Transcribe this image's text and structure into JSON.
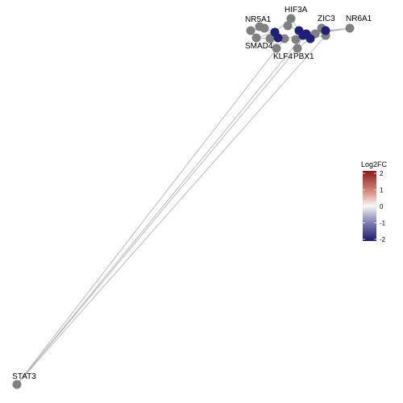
{
  "colors": {
    "edge": "#b3b3b3",
    "node_neutral": "#808080",
    "node_down": "#1f1f7a",
    "gradient_high": "#8b1a1a",
    "gradient_mid": "#f7f7f7",
    "gradient_low": "#1a1a6e"
  },
  "legend": {
    "title": "Log2FC",
    "ticks": [
      "2",
      "1",
      "0",
      "-1",
      "-2"
    ],
    "min": -2,
    "max": 2
  },
  "nodes": [
    {
      "id": "NR5A1",
      "label": "NR5A1",
      "log2fc": null
    },
    {
      "id": "HIF3A",
      "label": "HIF3A",
      "log2fc": null
    },
    {
      "id": "ZIC3",
      "label": "ZIC3",
      "log2fc": null
    },
    {
      "id": "NR6A1",
      "label": "NR6A1",
      "log2fc": null
    },
    {
      "id": "SMAD4",
      "label": "SMAD4",
      "log2fc": null
    },
    {
      "id": "KLF4",
      "label": "KLF4",
      "log2fc": null
    },
    {
      "id": "PBX1",
      "label": "PBX1",
      "log2fc": null
    },
    {
      "id": "STAT3",
      "label": "STAT3",
      "log2fc": null
    },
    {
      "id": "u1",
      "label": "",
      "log2fc": null
    },
    {
      "id": "u2",
      "label": "",
      "log2fc": null
    },
    {
      "id": "u3",
      "label": "",
      "log2fc": null
    },
    {
      "id": "u4",
      "label": "",
      "log2fc": null
    },
    {
      "id": "u5",
      "label": "",
      "log2fc": null
    },
    {
      "id": "u6",
      "label": "",
      "log2fc": null
    },
    {
      "id": "u7",
      "label": "",
      "log2fc": null
    },
    {
      "id": "u8",
      "label": "",
      "log2fc": null
    },
    {
      "id": "d1",
      "label": "",
      "log2fc": -2
    },
    {
      "id": "d2",
      "label": "",
      "log2fc": -2
    },
    {
      "id": "d3",
      "label": "",
      "log2fc": -2
    },
    {
      "id": "d4",
      "label": "",
      "log2fc": -2
    },
    {
      "id": "d5",
      "label": "",
      "log2fc": -2
    },
    {
      "id": "d6",
      "label": "",
      "log2fc": -2
    },
    {
      "id": "d7",
      "label": "",
      "log2fc": -2
    }
  ],
  "edges": [
    [
      "STAT3",
      "u6"
    ],
    [
      "STAT3",
      "PBX1"
    ],
    [
      "STAT3",
      "u8"
    ],
    [
      "STAT3",
      "d3"
    ],
    [
      "NR5A1",
      "u1"
    ],
    [
      "NR5A1",
      "d1"
    ],
    [
      "NR5A1",
      "d4"
    ],
    [
      "NR5A1",
      "u2"
    ],
    [
      "HIF3A",
      "d1"
    ],
    [
      "HIF3A",
      "u3"
    ],
    [
      "HIF3A",
      "d2"
    ],
    [
      "ZIC3",
      "d5"
    ],
    [
      "ZIC3",
      "d6"
    ],
    [
      "ZIC3",
      "u4"
    ],
    [
      "NR6A1",
      "d5"
    ],
    [
      "NR6A1",
      "u4"
    ],
    [
      "NR6A1",
      "d7"
    ],
    [
      "SMAD4",
      "u1"
    ],
    [
      "SMAD4",
      "u5"
    ],
    [
      "SMAD4",
      "d1"
    ],
    [
      "KLF4",
      "u5"
    ],
    [
      "KLF4",
      "d4"
    ],
    [
      "KLF4",
      "u6"
    ],
    [
      "PBX1",
      "d3"
    ],
    [
      "PBX1",
      "d6"
    ],
    [
      "u1",
      "u2"
    ],
    [
      "u2",
      "d1"
    ],
    [
      "u3",
      "d2"
    ],
    [
      "d2",
      "d5"
    ],
    [
      "d5",
      "d6"
    ],
    [
      "d6",
      "d7"
    ],
    [
      "u4",
      "d7"
    ],
    [
      "u5",
      "d4"
    ],
    [
      "d4",
      "u6"
    ],
    [
      "u6",
      "d3"
    ],
    [
      "d3",
      "u7"
    ],
    [
      "u7",
      "u8"
    ],
    [
      "u8",
      "d7"
    ],
    [
      "u3",
      "d5"
    ],
    [
      "d1",
      "d4"
    ]
  ]
}
